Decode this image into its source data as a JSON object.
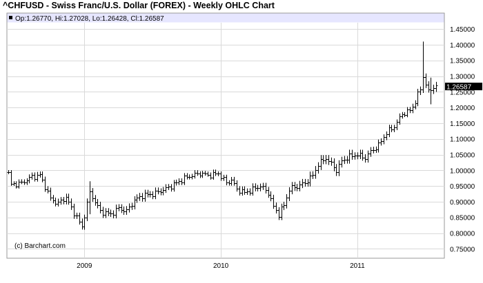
{
  "chart_data": {
    "type": "ohlc",
    "title": "^CHFUSD - Swiss Franc/U.S. Dollar (FOREX) - Weekly OHLC Chart",
    "ohlc_legend": "Op:1.26770, Hi:1.27028, Lo:1.26428, Cl:1.26587",
    "credit": "(c) Barchart.com",
    "last_price_label": "1.26587",
    "last_price": 1.26587,
    "ylim": [
      0.72,
      1.47
    ],
    "y_ticks": [
      {
        "value": 0.75,
        "label": "0.75000"
      },
      {
        "value": 0.8,
        "label": "0.80000"
      },
      {
        "value": 0.85,
        "label": "0.85000"
      },
      {
        "value": 0.9,
        "label": "0.90000"
      },
      {
        "value": 0.95,
        "label": "0.95000"
      },
      {
        "value": 1.0,
        "label": "1.00000"
      },
      {
        "value": 1.05,
        "label": "1.05000"
      },
      {
        "value": 1.1,
        "label": "1.10000"
      },
      {
        "value": 1.15,
        "label": "1.15000"
      },
      {
        "value": 1.2,
        "label": "1.20000"
      },
      {
        "value": 1.25,
        "label": "1.25000"
      },
      {
        "value": 1.3,
        "label": "1.30000"
      },
      {
        "value": 1.35,
        "label": "1.35000"
      },
      {
        "value": 1.4,
        "label": "1.40000"
      },
      {
        "value": 1.45,
        "label": "1.45000"
      }
    ],
    "x_ticks": [
      {
        "index": 29,
        "label": "2009"
      },
      {
        "index": 81,
        "label": "2010"
      },
      {
        "index": 133,
        "label": "2011"
      }
    ],
    "grid": true,
    "anchors": [
      [
        0,
        0.99
      ],
      [
        1,
        0.955
      ],
      [
        5,
        0.96
      ],
      [
        9,
        0.98
      ],
      [
        12,
        0.985
      ],
      [
        14,
        0.95
      ],
      [
        16,
        0.91
      ],
      [
        19,
        0.895
      ],
      [
        22,
        0.915
      ],
      [
        24,
        0.88
      ],
      [
        26,
        0.85
      ],
      [
        28,
        0.82
      ],
      [
        31,
        0.93
      ],
      [
        33,
        0.9
      ],
      [
        35,
        0.87
      ],
      [
        39,
        0.86
      ],
      [
        42,
        0.88
      ],
      [
        45,
        0.87
      ],
      [
        48,
        0.905
      ],
      [
        51,
        0.92
      ],
      [
        55,
        0.925
      ],
      [
        58,
        0.935
      ],
      [
        61,
        0.945
      ],
      [
        64,
        0.96
      ],
      [
        67,
        0.975
      ],
      [
        70,
        0.985
      ],
      [
        73,
        0.99
      ],
      [
        76,
        0.985
      ],
      [
        80,
        0.99
      ],
      [
        83,
        0.96
      ],
      [
        85,
        0.97
      ],
      [
        87,
        0.94
      ],
      [
        90,
        0.93
      ],
      [
        93,
        0.94
      ],
      [
        96,
        0.95
      ],
      [
        99,
        0.93
      ],
      [
        101,
        0.885
      ],
      [
        103,
        0.86
      ],
      [
        105,
        0.89
      ],
      [
        107,
        0.94
      ],
      [
        110,
        0.95
      ],
      [
        113,
        0.96
      ],
      [
        116,
        0.985
      ],
      [
        118,
        1.02
      ],
      [
        121,
        1.04
      ],
      [
        123,
        1.02
      ],
      [
        125,
        1.0
      ],
      [
        127,
        1.03
      ],
      [
        130,
        1.045
      ],
      [
        133,
        1.05
      ],
      [
        136,
        1.04
      ],
      [
        138,
        1.06
      ],
      [
        141,
        1.08
      ],
      [
        144,
        1.12
      ],
      [
        147,
        1.14
      ],
      [
        150,
        1.18
      ],
      [
        153,
        1.19
      ],
      [
        155,
        1.22
      ],
      [
        157,
        1.26
      ],
      [
        158,
        1.3
      ],
      [
        160,
        1.25
      ],
      [
        162,
        1.266
      ]
    ],
    "spikes": [
      [
        158,
        1.41,
        1.27
      ],
      [
        31,
        0.965,
        0.86
      ],
      [
        161,
        1.295,
        1.21
      ]
    ]
  }
}
